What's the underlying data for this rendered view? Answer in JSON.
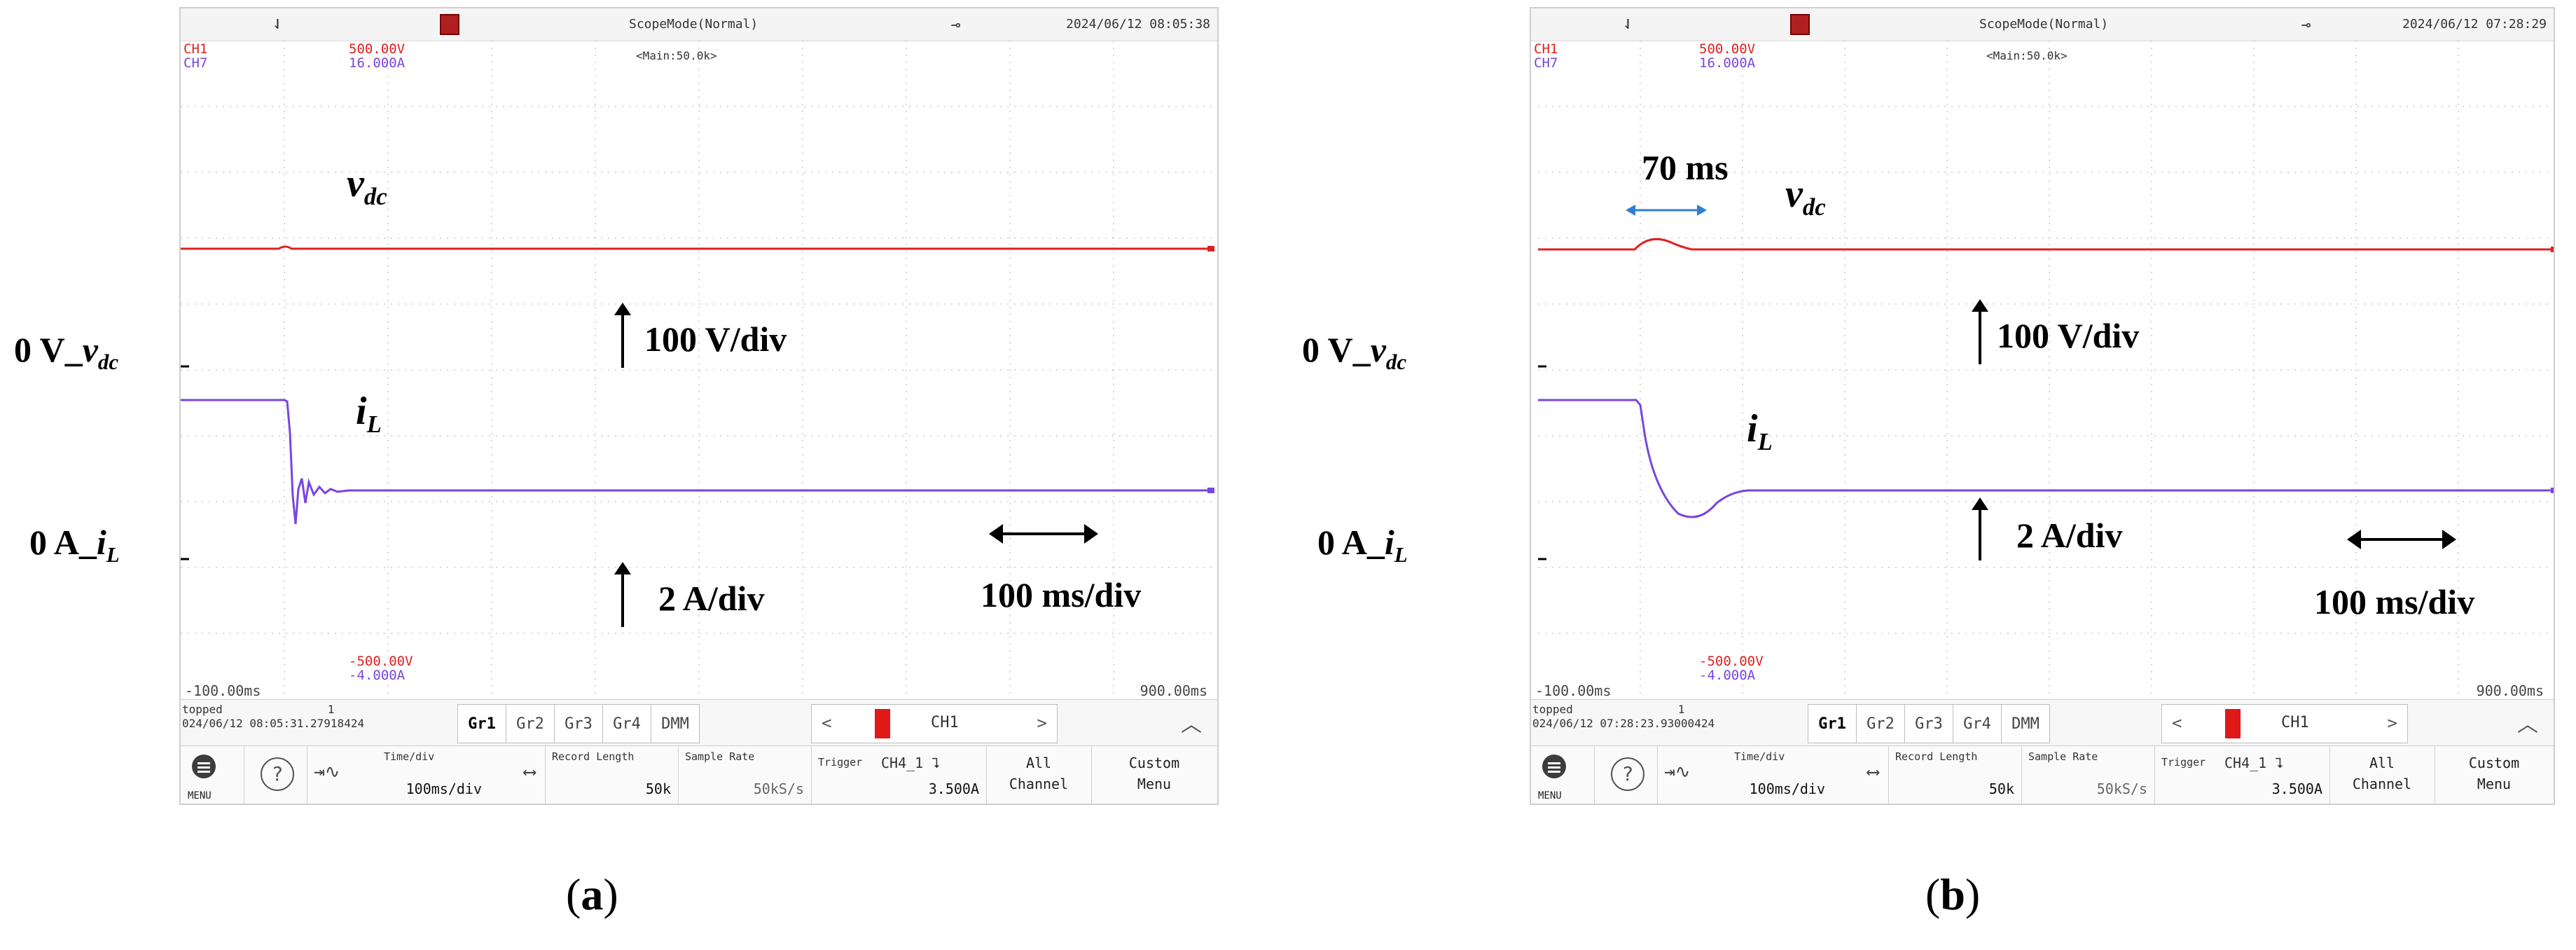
{
  "panels": [
    {
      "status": {
        "scope_mode": "ScopeMode(Normal)",
        "datetime": "2024/06/12 08:05:38"
      },
      "channels": {
        "ch1": {
          "name": "CH1",
          "scale": "500.00V",
          "bottom": "-500.00V",
          "color": "#e02020"
        },
        "ch7": {
          "name": "CH7",
          "scale": "16.000A",
          "bottom": "-4.000A",
          "color": "#7a45e0"
        }
      },
      "main_label": "<Main:50.0k>",
      "time_left": "-100.00ms",
      "time_right": "900.00ms",
      "info": {
        "stopped": "topped",
        "count": "1",
        "timestamp": "024/06/12 08:05:31.27918424"
      },
      "groups": [
        "Gr1",
        "Gr2",
        "Gr3",
        "Gr4",
        "DMM"
      ],
      "channel_selector": "CH1",
      "menu": {
        "menu_label": "MENU",
        "time_div_label": "Time/div",
        "time_div_value": "100ms/div",
        "record_length_label": "Record Length",
        "record_length_value": "50k",
        "sample_rate_label": "Sample Rate",
        "sample_rate_value": "50kS/s",
        "trigger_label": "Trigger",
        "trigger_source": "CH4_1 ⮧",
        "trigger_level": "3.500A",
        "all_channel": [
          "All",
          "Channel"
        ],
        "custom_menu": [
          "Custom",
          "Menu"
        ]
      },
      "annotations": {
        "vdc_main": "v",
        "vdc_sub": "dc",
        "il_main": "i",
        "il_sub": "L",
        "v_scale": "100 V/div",
        "i_scale": "2 A/div",
        "t_scale": "100 ms/div",
        "ref_v_prefix": "0 V_",
        "ref_v_var": "v",
        "ref_v_sub": "dc",
        "ref_i_prefix": "0 A_",
        "ref_i_var": "i",
        "ref_i_sub": "L"
      },
      "caption": {
        "letter": "a"
      }
    },
    {
      "status": {
        "scope_mode": "ScopeMode(Normal)",
        "datetime": "2024/06/12 07:28:29"
      },
      "channels": {
        "ch1": {
          "name": "CH1",
          "scale": "500.00V",
          "bottom": "-500.00V",
          "color": "#e02020"
        },
        "ch7": {
          "name": "CH7",
          "scale": "16.000A",
          "bottom": "-4.000A",
          "color": "#7a45e0"
        }
      },
      "main_label": "<Main:50.0k>",
      "time_left": "-100.00ms",
      "time_right": "900.00ms",
      "info": {
        "stopped": "topped",
        "count": "1",
        "timestamp": "024/06/12 07:28:23.93000424"
      },
      "groups": [
        "Gr1",
        "Gr2",
        "Gr3",
        "Gr4",
        "DMM"
      ],
      "channel_selector": "CH1",
      "menu": {
        "menu_label": "MENU",
        "time_div_label": "Time/div",
        "time_div_value": "100ms/div",
        "record_length_label": "Record Length",
        "record_length_value": "50k",
        "sample_rate_label": "Sample Rate",
        "sample_rate_value": "50kS/s",
        "trigger_label": "Trigger",
        "trigger_source": "CH4_1 ⮧",
        "trigger_level": "3.500A",
        "all_channel": [
          "All",
          "Channel"
        ],
        "custom_menu": [
          "Custom",
          "Menu"
        ]
      },
      "annotations": {
        "vdc_main": "v",
        "vdc_sub": "dc",
        "il_main": "i",
        "il_sub": "L",
        "v_scale": "100 V/div",
        "i_scale": "2 A/div",
        "t_scale": "100 ms/div",
        "ref_v_prefix": "0 V_",
        "ref_v_var": "v",
        "ref_v_sub": "dc",
        "ref_i_prefix": "0 A_",
        "ref_i_var": "i",
        "ref_i_sub": "L",
        "delay": "70 ms"
      },
      "caption": {
        "letter": "b"
      }
    }
  ]
}
